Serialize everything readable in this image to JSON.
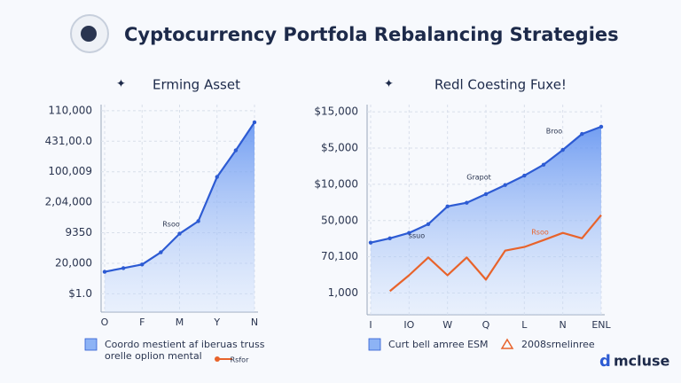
{
  "header": {
    "title": "Cyptocurrency Portfola Rebalancing Strategies"
  },
  "logo": {
    "text": "mcluse"
  },
  "chart_data": [
    {
      "type": "area",
      "title": "Erming Asset",
      "categories": [
        "O",
        null,
        "F",
        null,
        "M",
        null,
        "Y",
        null,
        "N"
      ],
      "ylim": [
        0.4,
        7.2
      ],
      "yticks": [
        {
          "value": 1,
          "label": "$1.0"
        },
        {
          "value": 2,
          "label": "20,000"
        },
        {
          "value": 3,
          "label": "9350"
        },
        {
          "value": 4,
          "label": "2,04,000"
        },
        {
          "value": 5,
          "label": "100,009"
        },
        {
          "value": 6,
          "label": "431,00.0"
        },
        {
          "value": 7,
          "label": "110,000"
        }
      ],
      "grid": true,
      "series": [
        {
          "name": "Coordo mestient af iberuas truss orelle oplion mental",
          "color": "#2d5bd3",
          "fill": true,
          "values": [
            1.72,
            1.84,
            1.96,
            2.36,
            2.97,
            3.38,
            4.83,
            5.7,
            6.62
          ]
        }
      ],
      "annotations": [
        "Rsoo",
        "Rsfor"
      ]
    },
    {
      "type": "area",
      "title": "Redl Coesting Fuxe!",
      "categories": [
        "I",
        null,
        "IO",
        null,
        "W",
        null,
        "Q",
        null,
        "L",
        null,
        "N",
        null,
        "ENL"
      ],
      "ylim": [
        0.4,
        6.2
      ],
      "yticks": [
        {
          "value": 1,
          "label": "1,000"
        },
        {
          "value": 2,
          "label": "70,100"
        },
        {
          "value": 3,
          "label": "50,000"
        },
        {
          "value": 4,
          "label": "$10,000"
        },
        {
          "value": 5,
          "label": "$5,000"
        },
        {
          "value": 6,
          "label": "$15,000"
        }
      ],
      "grid": true,
      "series": [
        {
          "name": "Curt bell amree ESM",
          "color": "#2d5bd3",
          "fill": true,
          "values": [
            2.39,
            2.51,
            2.66,
            2.9,
            3.39,
            3.49,
            3.73,
            3.98,
            4.24,
            4.54,
            4.95,
            5.39,
            5.59
          ]
        },
        {
          "name": "2008srnelinree",
          "color": "#e8632b",
          "fill": false,
          "values": [
            null,
            1.05,
            1.49,
            1.98,
            1.49,
            1.98,
            1.37,
            2.17,
            2.27,
            2.46,
            2.66,
            2.51,
            3.15
          ]
        }
      ],
      "annotations": [
        "ssuo",
        "Grapot",
        "Broo",
        "Rsoo"
      ]
    }
  ]
}
